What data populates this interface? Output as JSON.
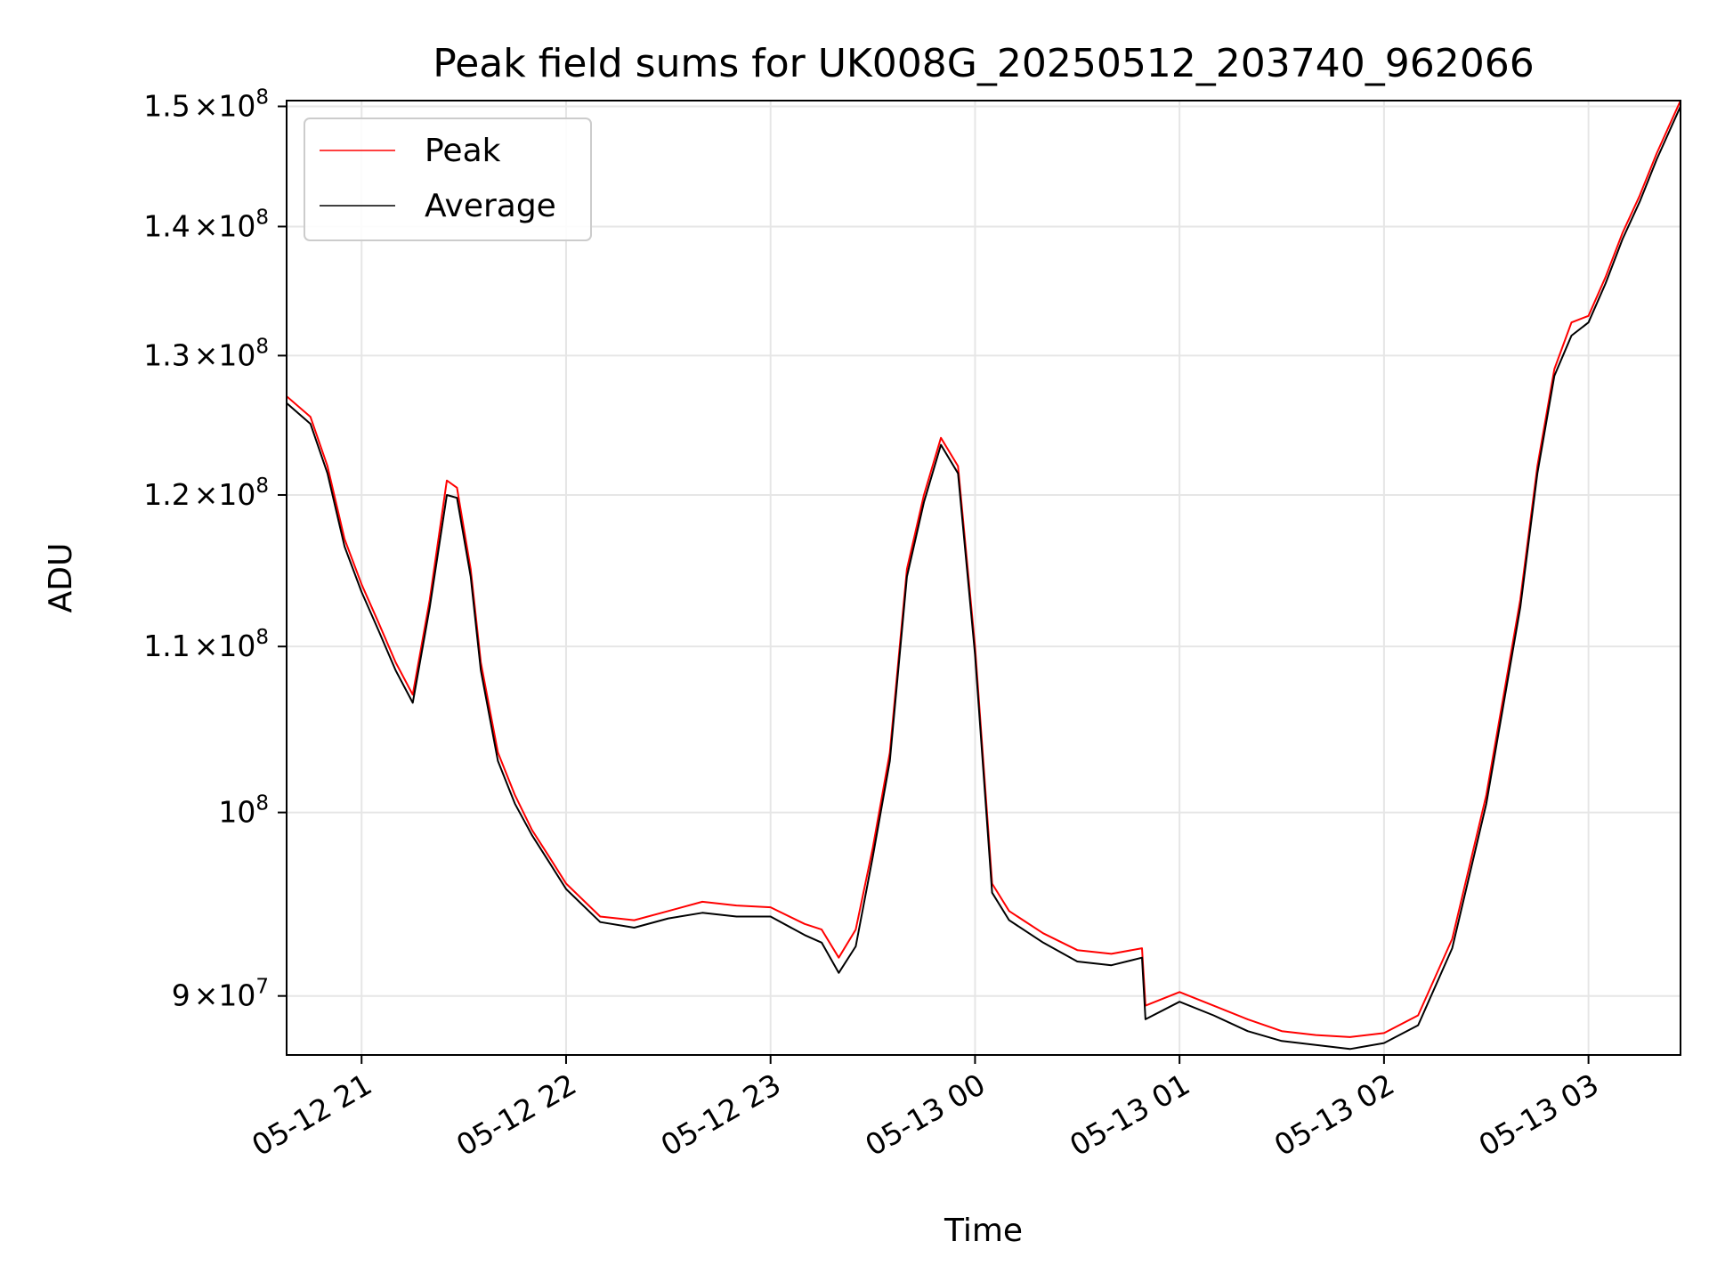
{
  "chart_data": {
    "type": "line",
    "title": "Peak field sums for UK008G_20250512_203740_962066",
    "xlabel": "Time",
    "ylabel": "ADU",
    "y_scale": "log",
    "ylim": [
      87000000,
      150500000
    ],
    "xlim": [
      "2025-05-12 20:38",
      "2025-05-13 03:27"
    ],
    "grid": true,
    "legend_position": "upper left",
    "x_ticks": [
      {
        "value": "2025-05-12 21:00",
        "label": "05-12 21"
      },
      {
        "value": "2025-05-12 22:00",
        "label": "05-12 22"
      },
      {
        "value": "2025-05-12 23:00",
        "label": "05-12 23"
      },
      {
        "value": "2025-05-13 00:00",
        "label": "05-13 00"
      },
      {
        "value": "2025-05-13 01:00",
        "label": "05-13 01"
      },
      {
        "value": "2025-05-13 02:00",
        "label": "05-13 02"
      },
      {
        "value": "2025-05-13 03:00",
        "label": "05-13 03"
      }
    ],
    "y_ticks": [
      {
        "value": 90000000,
        "mantissa": "9",
        "exp": "7",
        "plain": false
      },
      {
        "value": 100000000,
        "mantissa": "",
        "exp": "8",
        "plain": true
      },
      {
        "value": 110000000,
        "mantissa": "1.1",
        "exp": "8",
        "plain": false
      },
      {
        "value": 120000000,
        "mantissa": "1.2",
        "exp": "8",
        "plain": false
      },
      {
        "value": 130000000,
        "mantissa": "1.3",
        "exp": "8",
        "plain": false
      },
      {
        "value": 140000000,
        "mantissa": "1.4",
        "exp": "8",
        "plain": false
      },
      {
        "value": 150000000,
        "mantissa": "1.5",
        "exp": "8",
        "plain": false
      }
    ],
    "series": [
      {
        "name": "Peak",
        "color": "#ff0000",
        "x": [
          "2025-05-12 20:38",
          "2025-05-12 20:45",
          "2025-05-12 20:50",
          "2025-05-12 20:55",
          "2025-05-12 21:00",
          "2025-05-12 21:05",
          "2025-05-12 21:10",
          "2025-05-12 21:15",
          "2025-05-12 21:20",
          "2025-05-12 21:25",
          "2025-05-12 21:28",
          "2025-05-12 21:32",
          "2025-05-12 21:35",
          "2025-05-12 21:40",
          "2025-05-12 21:45",
          "2025-05-12 21:50",
          "2025-05-12 21:55",
          "2025-05-12 22:00",
          "2025-05-12 22:10",
          "2025-05-12 22:20",
          "2025-05-12 22:30",
          "2025-05-12 22:40",
          "2025-05-12 22:50",
          "2025-05-12 23:00",
          "2025-05-12 23:10",
          "2025-05-12 23:15",
          "2025-05-12 23:20",
          "2025-05-12 23:25",
          "2025-05-12 23:30",
          "2025-05-12 23:35",
          "2025-05-12 23:40",
          "2025-05-12 23:45",
          "2025-05-12 23:50",
          "2025-05-12 23:55",
          "2025-05-13 00:00",
          "2025-05-13 00:05",
          "2025-05-13 00:10",
          "2025-05-13 00:20",
          "2025-05-13 00:30",
          "2025-05-13 00:40",
          "2025-05-13 00:49",
          "2025-05-13 00:50",
          "2025-05-13 01:00",
          "2025-05-13 01:10",
          "2025-05-13 01:20",
          "2025-05-13 01:30",
          "2025-05-13 01:40",
          "2025-05-13 01:50",
          "2025-05-13 02:00",
          "2025-05-13 02:10",
          "2025-05-13 02:20",
          "2025-05-13 02:30",
          "2025-05-13 02:40",
          "2025-05-13 02:45",
          "2025-05-13 02:50",
          "2025-05-13 02:55",
          "2025-05-13 03:00",
          "2025-05-13 03:05",
          "2025-05-13 03:10",
          "2025-05-13 03:15",
          "2025-05-13 03:20",
          "2025-05-13 03:27"
        ],
        "values": [
          127000000,
          125500000,
          122000000,
          117000000,
          114000000,
          111500000,
          109000000,
          107000000,
          113000000,
          121000000,
          120500000,
          115000000,
          109000000,
          103500000,
          101000000,
          99000000,
          97500000,
          96000000,
          94200000,
          94000000,
          94500000,
          95000000,
          94800000,
          94700000,
          93800000,
          93500000,
          92000000,
          93500000,
          98000000,
          103500000,
          115000000,
          120000000,
          124000000,
          122000000,
          110000000,
          96000000,
          94500000,
          93300000,
          92400000,
          92200000,
          92500000,
          89500000,
          90200000,
          89500000,
          88800000,
          88200000,
          88000000,
          87900000,
          88100000,
          89000000,
          93000000,
          101000000,
          113000000,
          122000000,
          129000000,
          132500000,
          133000000,
          136000000,
          139500000,
          142500000,
          146000000,
          150500000
        ]
      },
      {
        "name": "Average",
        "color": "#000000",
        "x": [
          "2025-05-12 20:38",
          "2025-05-12 20:45",
          "2025-05-12 20:50",
          "2025-05-12 20:55",
          "2025-05-12 21:00",
          "2025-05-12 21:05",
          "2025-05-12 21:10",
          "2025-05-12 21:15",
          "2025-05-12 21:20",
          "2025-05-12 21:25",
          "2025-05-12 21:28",
          "2025-05-12 21:32",
          "2025-05-12 21:35",
          "2025-05-12 21:40",
          "2025-05-12 21:45",
          "2025-05-12 21:50",
          "2025-05-12 21:55",
          "2025-05-12 22:00",
          "2025-05-12 22:10",
          "2025-05-12 22:20",
          "2025-05-12 22:30",
          "2025-05-12 22:40",
          "2025-05-12 22:50",
          "2025-05-12 23:00",
          "2025-05-12 23:10",
          "2025-05-12 23:15",
          "2025-05-12 23:20",
          "2025-05-12 23:25",
          "2025-05-12 23:30",
          "2025-05-12 23:35",
          "2025-05-12 23:40",
          "2025-05-12 23:45",
          "2025-05-12 23:50",
          "2025-05-12 23:55",
          "2025-05-13 00:00",
          "2025-05-13 00:05",
          "2025-05-13 00:10",
          "2025-05-13 00:20",
          "2025-05-13 00:30",
          "2025-05-13 00:40",
          "2025-05-13 00:49",
          "2025-05-13 00:50",
          "2025-05-13 01:00",
          "2025-05-13 01:10",
          "2025-05-13 01:20",
          "2025-05-13 01:30",
          "2025-05-13 01:40",
          "2025-05-13 01:50",
          "2025-05-13 02:00",
          "2025-05-13 02:10",
          "2025-05-13 02:20",
          "2025-05-13 02:30",
          "2025-05-13 02:40",
          "2025-05-13 02:45",
          "2025-05-13 02:50",
          "2025-05-13 02:55",
          "2025-05-13 03:00",
          "2025-05-13 03:05",
          "2025-05-13 03:10",
          "2025-05-13 03:15",
          "2025-05-13 03:20",
          "2025-05-13 03:27"
        ],
        "values": [
          126500000,
          125000000,
          121500000,
          116500000,
          113500000,
          111000000,
          108500000,
          106500000,
          112500000,
          120000000,
          119800000,
          114500000,
          108500000,
          103000000,
          100500000,
          98700000,
          97200000,
          95700000,
          93900000,
          93600000,
          94100000,
          94400000,
          94200000,
          94200000,
          93200000,
          92800000,
          91200000,
          92600000,
          97500000,
          103000000,
          114500000,
          119500000,
          123500000,
          121500000,
          109500000,
          95500000,
          94000000,
          92800000,
          91800000,
          91600000,
          92000000,
          88800000,
          89700000,
          89000000,
          88200000,
          87700000,
          87500000,
          87300000,
          87600000,
          88500000,
          92500000,
          100500000,
          112500000,
          121500000,
          128500000,
          131500000,
          132500000,
          135500000,
          139000000,
          142000000,
          145500000,
          150000000
        ]
      }
    ]
  }
}
